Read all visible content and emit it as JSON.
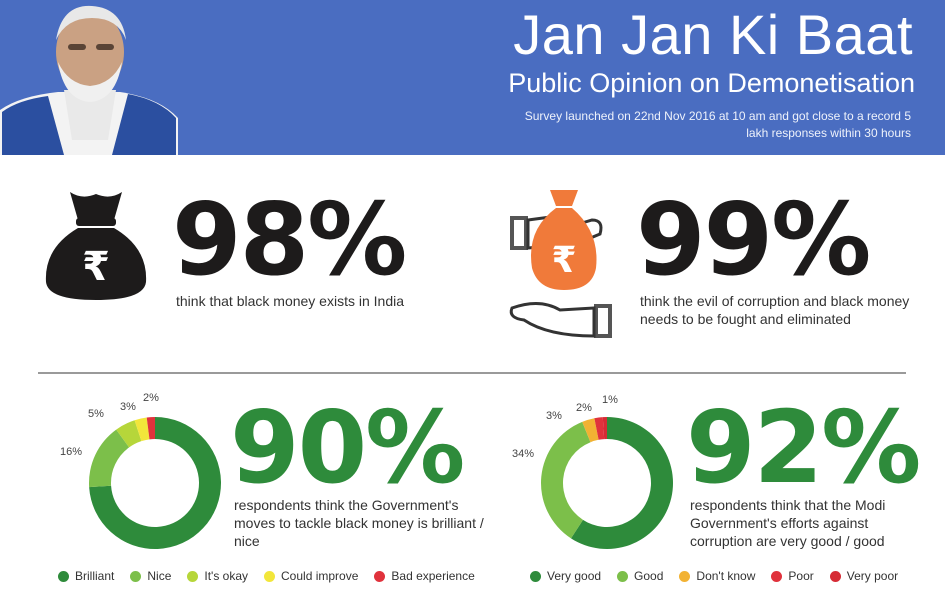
{
  "header": {
    "title": "Jan Jan Ki Baat",
    "subtitle": "Public Opinion on Demonetisation",
    "note": "Survey launched on 22nd Nov 2016 at 10 am and got close to a record 5 lakh responses within 30 hours"
  },
  "stats": [
    {
      "value": "98%",
      "text": "think that black money exists in India",
      "icon": "money-bag-icon"
    },
    {
      "value": "99%",
      "text": "think the evil of corruption and black money needs to be fought and eliminated",
      "icon": "hand-bribe-icon"
    },
    {
      "value": "90%",
      "text": "respondents think the Government's moves to tackle black money is brilliant / nice"
    },
    {
      "value": "92%",
      "text": "respondents think that the Modi Government's efforts against corruption are very good / good"
    }
  ],
  "colors": {
    "header_bg": "#4a6dc1",
    "orange": "#f07a3a",
    "dark": "#1d1b1b",
    "dark_green": "#2e8b3b",
    "light_green": "#7cbf4a",
    "lime": "#b6d63a",
    "yellow": "#f2e63a",
    "amber": "#f2b233",
    "red": "#e0323c"
  },
  "chart_data": [
    {
      "type": "pie",
      "categories": [
        "Brilliant",
        "Nice",
        "It's okay",
        "Could improve",
        "Bad experience"
      ],
      "values": [
        74,
        16,
        5,
        3,
        2
      ],
      "labels": [
        "",
        "16%",
        "5%",
        "3%",
        "2%"
      ],
      "colors": [
        "#2e8b3b",
        "#7cbf4a",
        "#b6d63a",
        "#f2e63a",
        "#e0323c"
      ]
    },
    {
      "type": "pie",
      "categories": [
        "Very good",
        "Good",
        "Don't know",
        "Poor",
        "Very poor"
      ],
      "values": [
        58,
        34,
        3,
        2,
        1
      ],
      "labels": [
        "",
        "34%",
        "3%",
        "2%",
        "1%"
      ],
      "colors": [
        "#2e8b3b",
        "#7cbf4a",
        "#f2b233",
        "#e0323c",
        "#d62b35"
      ]
    }
  ]
}
